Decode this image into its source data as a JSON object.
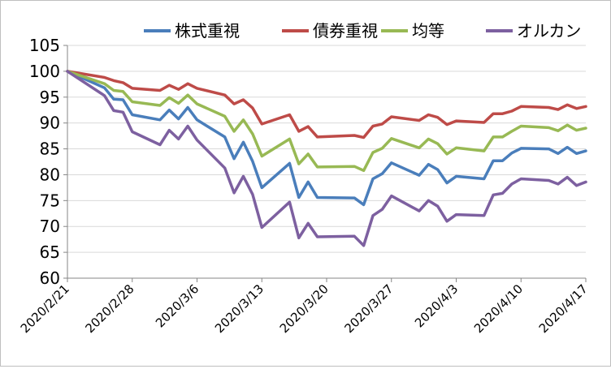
{
  "chart_data": {
    "type": "line",
    "title": "",
    "xlabel": "",
    "ylabel": "",
    "ylim": [
      60,
      105
    ],
    "yticks": [
      60,
      65,
      70,
      75,
      80,
      85,
      90,
      95,
      100,
      105
    ],
    "ytick_labels": [
      "60",
      "65",
      "70",
      "75",
      "80",
      "85",
      "90",
      "95",
      "100",
      "105"
    ],
    "grid": true,
    "legend_position": "top",
    "x": [
      "2020/2/21",
      "2020/2/25",
      "2020/2/26",
      "2020/2/27",
      "2020/2/28",
      "2020/3/2",
      "2020/3/3",
      "2020/3/4",
      "2020/3/5",
      "2020/3/6",
      "2020/3/9",
      "2020/3/10",
      "2020/3/11",
      "2020/3/12",
      "2020/3/13",
      "2020/3/16",
      "2020/3/17",
      "2020/3/18",
      "2020/3/19",
      "2020/3/23",
      "2020/3/24",
      "2020/3/25",
      "2020/3/26",
      "2020/3/27",
      "2020/3/30",
      "2020/3/31",
      "2020/4/1",
      "2020/4/2",
      "2020/4/3",
      "2020/4/6",
      "2020/4/7",
      "2020/4/8",
      "2020/4/9",
      "2020/4/10",
      "2020/4/13",
      "2020/4/14",
      "2020/4/15",
      "2020/4/16",
      "2020/4/17"
    ],
    "xtick_labels": [
      "2020/2/21",
      "2020/2/28",
      "2020/3/6",
      "2020/3/13",
      "2020/3/20",
      "2020/3/27",
      "2020/4/3",
      "2020/4/10",
      "2020/4/17"
    ],
    "series": [
      {
        "name": "株式重視",
        "color": "#4a7ebb",
        "values": [
          100,
          96.8,
          94.6,
          94.5,
          91.6,
          90.6,
          92.5,
          90.8,
          93.0,
          90.6,
          87.3,
          83.1,
          86.3,
          82.6,
          77.5,
          82.2,
          75.6,
          78.6,
          75.6,
          75.5,
          74.2,
          79.2,
          80.2,
          82.3,
          79.9,
          82.0,
          81.0,
          78.4,
          79.7,
          79.2,
          82.7,
          82.7,
          84.2,
          85.1,
          85.0,
          84.1,
          85.3,
          84.1,
          84.6
        ]
      },
      {
        "name": "債券重視",
        "color": "#be4b48",
        "values": [
          100,
          98.8,
          98.2,
          97.8,
          96.7,
          96.3,
          97.3,
          96.5,
          97.6,
          96.7,
          95.4,
          93.7,
          94.5,
          92.9,
          89.8,
          91.6,
          88.4,
          89.3,
          87.3,
          87.6,
          87.2,
          89.4,
          89.8,
          91.2,
          90.5,
          91.6,
          91.1,
          89.7,
          90.4,
          90.1,
          91.8,
          91.8,
          92.3,
          93.2,
          93.0,
          92.6,
          93.5,
          92.8,
          93.2
        ]
      },
      {
        "name": "均等",
        "color": "#98b954",
        "values": [
          100,
          97.6,
          96.3,
          96.1,
          94.1,
          93.4,
          94.9,
          93.8,
          95.4,
          93.7,
          91.3,
          88.4,
          90.6,
          87.9,
          83.6,
          86.9,
          82.1,
          84.0,
          81.5,
          81.6,
          80.8,
          84.3,
          85.1,
          87.0,
          85.2,
          86.9,
          86.0,
          84.0,
          85.2,
          84.6,
          87.3,
          87.3,
          88.4,
          89.4,
          89.1,
          88.5,
          89.6,
          88.6,
          89.0
        ]
      },
      {
        "name": "オルカン",
        "color": "#7d60a0",
        "values": [
          100,
          95.3,
          92.4,
          92.1,
          88.3,
          85.8,
          88.6,
          86.9,
          89.4,
          86.7,
          81.3,
          76.5,
          79.7,
          76.2,
          69.8,
          74.7,
          67.8,
          70.6,
          68.0,
          68.1,
          66.3,
          72.1,
          73.3,
          75.9,
          73.0,
          75.0,
          73.9,
          71.0,
          72.3,
          72.1,
          76.1,
          76.4,
          78.2,
          79.2,
          78.9,
          78.2,
          79.5,
          77.9,
          78.6
        ]
      }
    ]
  }
}
